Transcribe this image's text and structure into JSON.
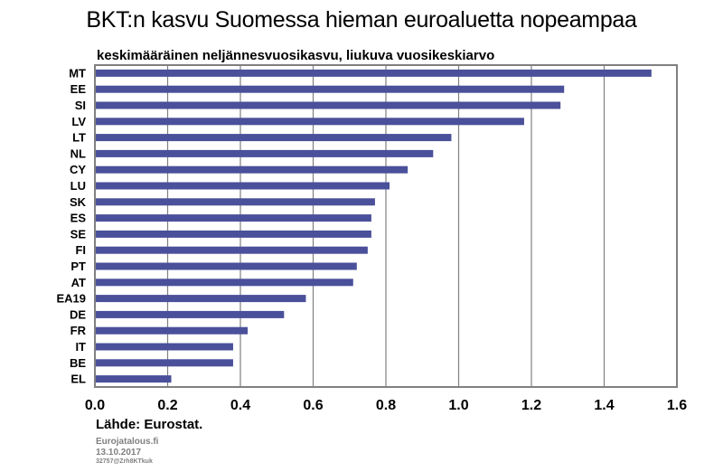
{
  "chart_data": {
    "type": "bar",
    "orientation": "horizontal",
    "title": "BKT:n kasvu Suomessa hieman euroaluetta nopeampaa",
    "subtitle": "keskimääräinen neljännesvuosikasvu, liukuva vuosikeskiarvo",
    "categories": [
      "MT",
      "EE",
      "SI",
      "LV",
      "LT",
      "NL",
      "CY",
      "LU",
      "SK",
      "ES",
      "SE",
      "FI",
      "PT",
      "AT",
      "EA19",
      "DE",
      "FR",
      "IT",
      "BE",
      "EL"
    ],
    "values": [
      1.53,
      1.29,
      1.28,
      1.18,
      0.98,
      0.93,
      0.86,
      0.81,
      0.77,
      0.76,
      0.76,
      0.75,
      0.72,
      0.71,
      0.58,
      0.52,
      0.42,
      0.38,
      0.38,
      0.21
    ],
    "xlim": [
      0,
      1.6
    ],
    "xticks": [
      "0.0",
      "0.2",
      "0.4",
      "0.6",
      "0.8",
      "1.0",
      "1.2",
      "1.4",
      "1.6"
    ],
    "grid": true,
    "bar_color": "#4a509a"
  },
  "source": "Lähde: Eurostat.",
  "footer": {
    "line1": "Eurojatalous.fi",
    "line2": "13.10.2017",
    "line3": "32757@Zrh8KTkuk"
  }
}
